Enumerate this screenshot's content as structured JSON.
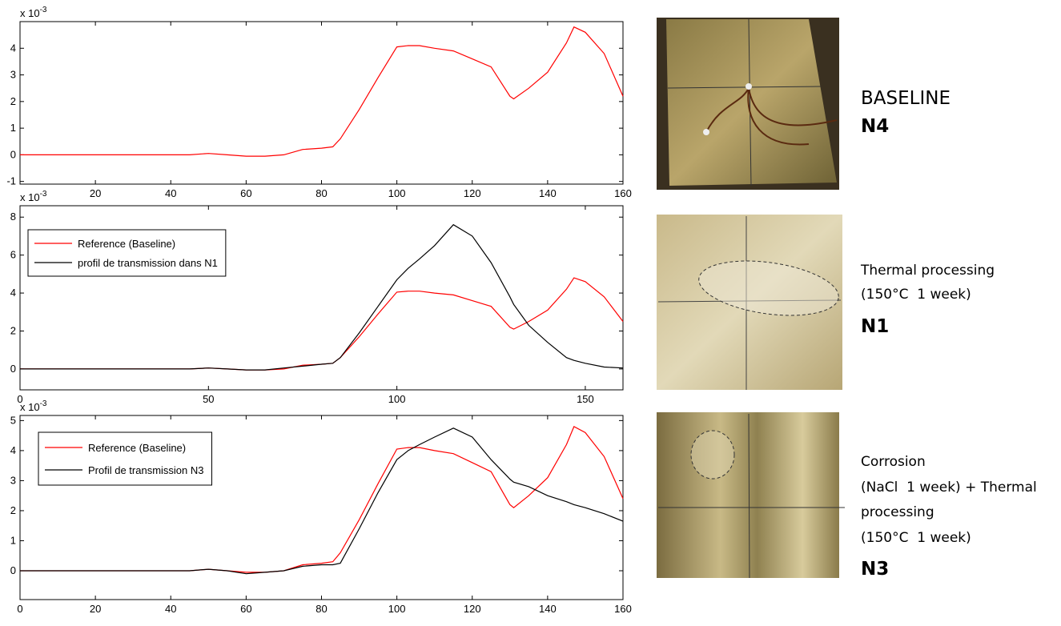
{
  "chart_data": [
    {
      "type": "line",
      "x": [
        0,
        10,
        20,
        30,
        40,
        45,
        50,
        55,
        60,
        65,
        70,
        75,
        80,
        83,
        85,
        90,
        95,
        100,
        103,
        106,
        110,
        115,
        120,
        125,
        130,
        131,
        135,
        140,
        145,
        147,
        150,
        155,
        160
      ],
      "series": [
        {
          "color": "#ff0000",
          "values": [
            0,
            0,
            0,
            0,
            0,
            0,
            0.05,
            0,
            -0.05,
            -0.05,
            0,
            0.2,
            0.25,
            0.3,
            0.6,
            1.7,
            2.9,
            4.05,
            4.1,
            4.1,
            4.0,
            3.9,
            3.6,
            3.3,
            2.2,
            2.1,
            2.5,
            3.1,
            4.2,
            4.8,
            4.6,
            3.8,
            2.2
          ]
        }
      ],
      "xlim": [
        0,
        160
      ],
      "ylim": [
        -1.1,
        5.0
      ],
      "xticks": [
        20,
        40,
        60,
        80,
        100,
        120,
        140,
        160
      ],
      "yticks": [
        -1,
        0,
        1,
        2,
        3,
        4
      ],
      "y_multiplier": {
        "base": "x 10",
        "exponent": "-3"
      }
    },
    {
      "type": "line",
      "x": [
        0,
        10,
        20,
        30,
        40,
        45,
        50,
        55,
        60,
        65,
        70,
        75,
        80,
        83,
        85,
        90,
        95,
        100,
        103,
        106,
        110,
        115,
        120,
        125,
        130,
        131,
        135,
        140,
        145,
        147,
        150,
        155,
        160
      ],
      "series": [
        {
          "name": "Reference (Baseline)",
          "color": "#ff0000",
          "values": [
            0,
            0,
            0,
            0,
            0,
            0,
            0.05,
            0,
            -0.05,
            -0.05,
            0,
            0.2,
            0.25,
            0.3,
            0.6,
            1.7,
            2.9,
            4.05,
            4.1,
            4.1,
            4.0,
            3.9,
            3.6,
            3.3,
            2.2,
            2.1,
            2.5,
            3.1,
            4.2,
            4.8,
            4.6,
            3.8,
            2.5
          ]
        },
        {
          "name": "profil de transmission dans N1",
          "color": "#000000",
          "values": [
            0,
            0,
            0,
            0,
            0,
            0,
            0.05,
            0,
            -0.05,
            -0.05,
            0.05,
            0.15,
            0.25,
            0.3,
            0.6,
            1.9,
            3.3,
            4.7,
            5.3,
            5.8,
            6.5,
            7.6,
            7.0,
            5.6,
            3.8,
            3.4,
            2.3,
            1.4,
            0.6,
            0.45,
            0.3,
            0.1,
            0.05
          ]
        }
      ],
      "xlim": [
        0,
        160
      ],
      "ylim": [
        -1.1,
        8.6
      ],
      "xticks": [
        0,
        50,
        100,
        150
      ],
      "yticks": [
        0,
        2,
        4,
        6,
        8
      ],
      "y_multiplier": {
        "base": "x 10",
        "exponent": "-3"
      },
      "legend": "upper left"
    },
    {
      "type": "line",
      "x": [
        0,
        10,
        20,
        30,
        40,
        45,
        50,
        55,
        60,
        65,
        70,
        75,
        80,
        83,
        85,
        90,
        95,
        100,
        103,
        106,
        110,
        115,
        120,
        125,
        130,
        131,
        135,
        140,
        145,
        147,
        150,
        155,
        160
      ],
      "series": [
        {
          "name": "Reference (Baseline)",
          "color": "#ff0000",
          "values": [
            0,
            0,
            0,
            0,
            0,
            0,
            0.05,
            0,
            -0.05,
            -0.05,
            0,
            0.2,
            0.25,
            0.3,
            0.6,
            1.7,
            2.9,
            4.05,
            4.1,
            4.1,
            4.0,
            3.9,
            3.6,
            3.3,
            2.2,
            2.1,
            2.5,
            3.1,
            4.2,
            4.8,
            4.6,
            3.8,
            2.4
          ]
        },
        {
          "name": "Profil de transmission N3",
          "color": "#000000",
          "values": [
            0,
            0,
            0,
            0,
            0,
            0,
            0.05,
            0,
            -0.1,
            -0.05,
            0,
            0.15,
            0.2,
            0.2,
            0.25,
            1.4,
            2.6,
            3.7,
            4.0,
            4.2,
            4.45,
            4.75,
            4.45,
            3.7,
            3.05,
            2.95,
            2.8,
            2.5,
            2.3,
            2.2,
            2.1,
            1.9,
            1.65
          ]
        }
      ],
      "xlim": [
        0,
        160
      ],
      "ylim": [
        -0.96,
        5.17
      ],
      "xticks": [
        0,
        20,
        40,
        60,
        80,
        100,
        120,
        140,
        160
      ],
      "yticks": [
        0,
        1,
        2,
        3,
        4,
        5
      ],
      "y_multiplier": {
        "base": "x 10",
        "exponent": "-3"
      },
      "legend": "upper left"
    }
  ],
  "captions": [
    {
      "lines": [
        "BASELINE"
      ],
      "code": "N4"
    },
    {
      "lines": [
        "Thermal processing",
        "(150°C  1 week)"
      ],
      "code": "N1"
    },
    {
      "lines": [
        "Corrosion",
        "(NaCl  1 week) + Thermal",
        "processing",
        "(150°C  1 week)"
      ],
      "code": "N3"
    }
  ]
}
